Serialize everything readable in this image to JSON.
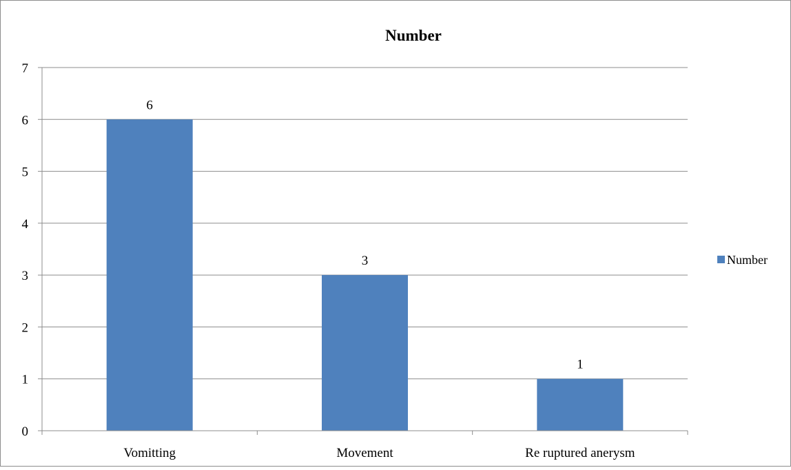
{
  "chart_data": {
    "type": "bar",
    "title": "Number",
    "categories": [
      "Vomitting",
      "Movement",
      "Re ruptured anerysm"
    ],
    "series": [
      {
        "name": "Number",
        "values": [
          6,
          3,
          1
        ],
        "color": "#4F81BD"
      }
    ],
    "data_labels": [
      "6",
      "3",
      "1"
    ],
    "ylim": [
      0,
      7
    ],
    "yticks": [
      "0",
      "1",
      "2",
      "3",
      "4",
      "5",
      "6",
      "7"
    ],
    "grid": true,
    "legend": {
      "position": "right",
      "entries": [
        "Number"
      ]
    },
    "xlabel": "",
    "ylabel": ""
  }
}
